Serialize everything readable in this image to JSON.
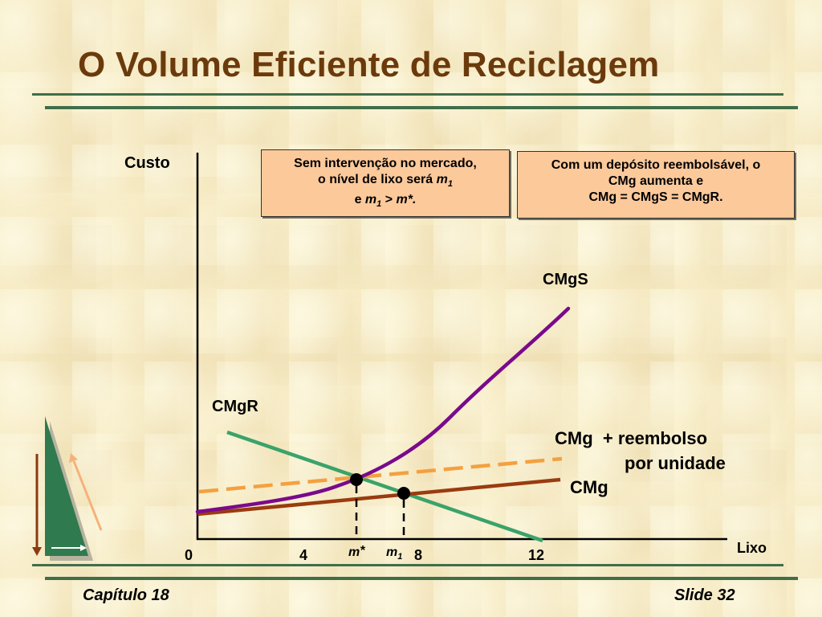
{
  "slide": {
    "title": "O Volume Eficiente de Reciclagem",
    "footer_left": "Capítulo 18",
    "footer_right": "Slide 32"
  },
  "boxes": {
    "left": {
      "line1": "Sem intervenção no mercado,",
      "line2_text": "o nível de lixo será ",
      "line2_var": "m",
      "line2_sub": "1",
      "line3_pre": "e ",
      "line3_var1": "m",
      "line3_sub": "1",
      "line3_mid": " > ",
      "line3_var2": "m*."
    },
    "right": {
      "line1": "Com um depósito reembolsável, o",
      "line2": "CMg aumenta e",
      "line3": "CMg = CMgS = CMgR."
    }
  },
  "chart_data": {
    "type": "line",
    "xlabel": "Lixo",
    "ylabel": "Custo",
    "x_ticks": [
      "0",
      "4",
      "8",
      "12"
    ],
    "marked_points": [
      {
        "label_var": "m",
        "label_sup": "*",
        "description": "equilibrium with refund deposit"
      },
      {
        "label_var": "m",
        "label_sub": "1",
        "description": "equilibrium without intervention"
      }
    ],
    "series_labels": {
      "cmgs": "CMgS",
      "cmgr": "CMgR",
      "cmg": "CMg",
      "cmg_refund_line1": "CMg  + reembolso",
      "cmg_refund_line2": "por unidade"
    },
    "colors": {
      "cmgs": "#7a0a8c",
      "cmgr": "#3aa36a",
      "cmg": "#9a3b10",
      "cmg_refund": "#f4a040",
      "axis": "#000000"
    }
  },
  "decor": {
    "triangle_color": "#2f7a4e",
    "arrow_down_color": "#8a3a10",
    "arrow_up_color": "#f4b27a"
  }
}
